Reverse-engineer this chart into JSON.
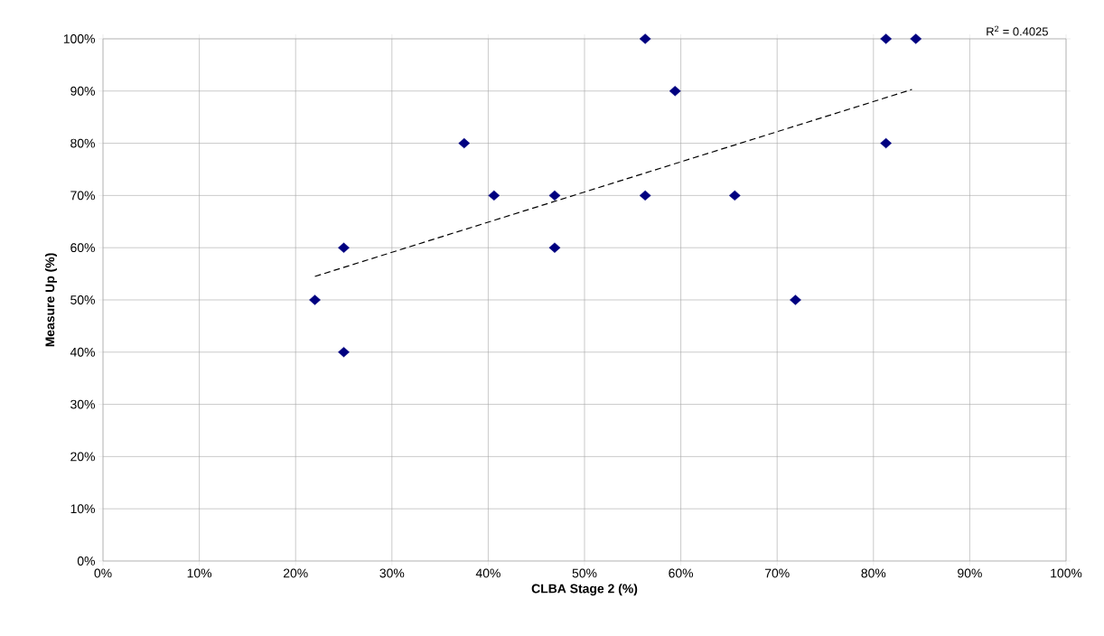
{
  "chart_data": {
    "type": "scatter",
    "xlabel": "CLBA Stage 2 (%)",
    "ylabel": "Measure Up (%)",
    "annotations": [
      "R$^{2}$ = 0.4025"
    ],
    "series": [
      {
        "color": "#000080",
        "marker": "diamond",
        "x": [
          22,
          25,
          25,
          37.5,
          40.6,
          46.9,
          46.9,
          56.3,
          56.3,
          59.4,
          65.6,
          71.9,
          81.3,
          81.3,
          84.4
        ],
        "values": [
          50,
          60,
          40,
          80,
          70,
          70,
          60,
          100,
          70,
          90,
          70,
          50,
          100,
          80,
          100
        ]
      },
      {
        "type": "line",
        "color": "#000000",
        "line_style": "dashed",
        "marker": "none",
        "x": [
          22,
          84
        ],
        "values": [
          54.5,
          90.3
        ]
      }
    ],
    "xlim": [
      0,
      100
    ],
    "ylim": [
      0,
      100
    ],
    "xticks": [
      {
        "value": 0,
        "label": "0%"
      },
      {
        "value": 10,
        "label": "10%"
      },
      {
        "value": 20,
        "label": "20%"
      },
      {
        "value": 30,
        "label": "30%"
      },
      {
        "value": 40,
        "label": "40%"
      },
      {
        "value": 50,
        "label": "50%"
      },
      {
        "value": 60,
        "label": "60%"
      },
      {
        "value": 70,
        "label": "70%"
      },
      {
        "value": 80,
        "label": "80%"
      },
      {
        "value": 90,
        "label": "90%"
      },
      {
        "value": 100,
        "label": "100%"
      }
    ],
    "yticks": [
      {
        "value": 0,
        "label": "0%"
      },
      {
        "value": 10,
        "label": "10%"
      },
      {
        "value": 20,
        "label": "20%"
      },
      {
        "value": 30,
        "label": "30%"
      },
      {
        "value": 40,
        "label": "40%"
      },
      {
        "value": 50,
        "label": "50%"
      },
      {
        "value": 60,
        "label": "60%"
      },
      {
        "value": 70,
        "label": "70%"
      },
      {
        "value": 80,
        "label": "80%"
      },
      {
        "value": 90,
        "label": "90%"
      },
      {
        "value": 100,
        "label": "100%"
      }
    ],
    "grid": true
  }
}
